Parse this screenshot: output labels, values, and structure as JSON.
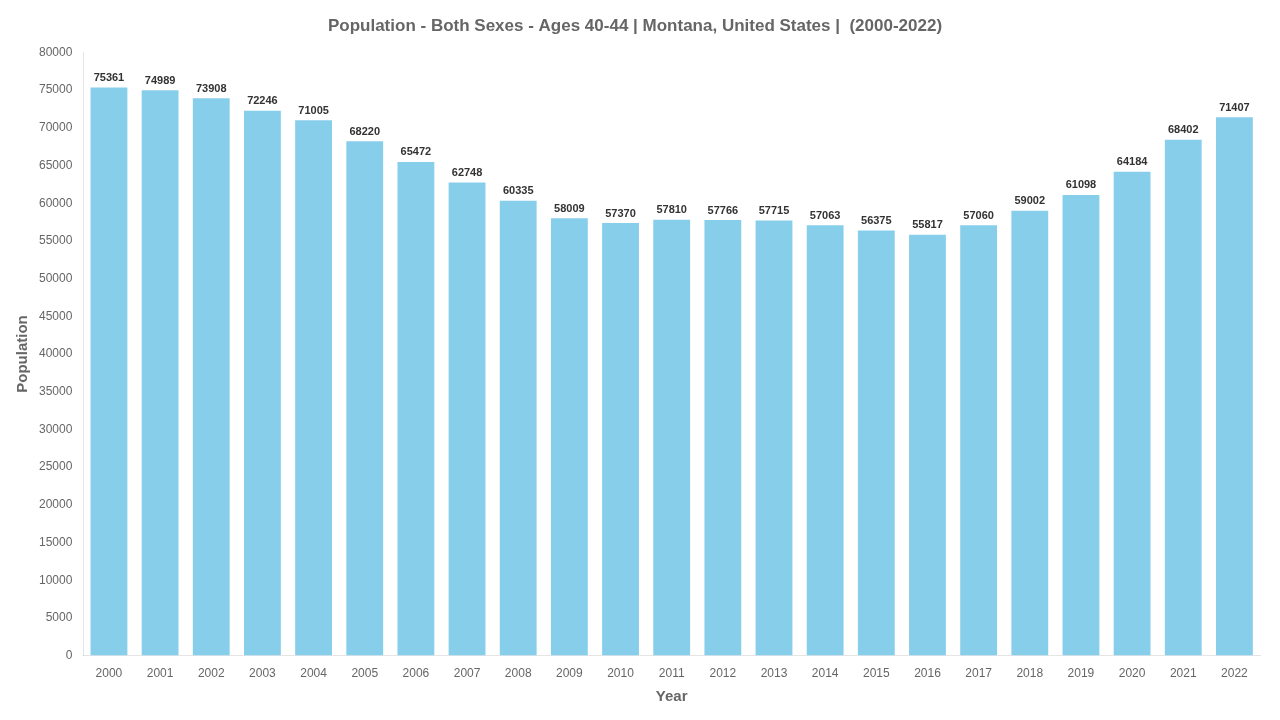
{
  "chart_data": {
    "type": "bar",
    "title": "Population - Both Sexes - Ages 40-44 | Montana, United States |  (2000-2022)",
    "xlabel": "Year",
    "ylabel": "Population",
    "categories": [
      "2000",
      "2001",
      "2002",
      "2003",
      "2004",
      "2005",
      "2006",
      "2007",
      "2008",
      "2009",
      "2010",
      "2011",
      "2012",
      "2013",
      "2014",
      "2015",
      "2016",
      "2017",
      "2018",
      "2019",
      "2020",
      "2021",
      "2022"
    ],
    "values": [
      75361,
      74989,
      73908,
      72246,
      71005,
      68220,
      65472,
      62748,
      60335,
      58009,
      57370,
      57810,
      57766,
      57715,
      57063,
      56375,
      55817,
      57060,
      59002,
      61098,
      64184,
      68402,
      71407
    ],
    "color": "#87ceeb",
    "ylim": [
      0,
      80000
    ],
    "yticks": [
      0,
      5000,
      10000,
      15000,
      20000,
      25000,
      30000,
      35000,
      40000,
      45000,
      50000,
      55000,
      60000,
      65000,
      70000,
      75000,
      80000
    ],
    "grid": false,
    "data_labels": true
  }
}
